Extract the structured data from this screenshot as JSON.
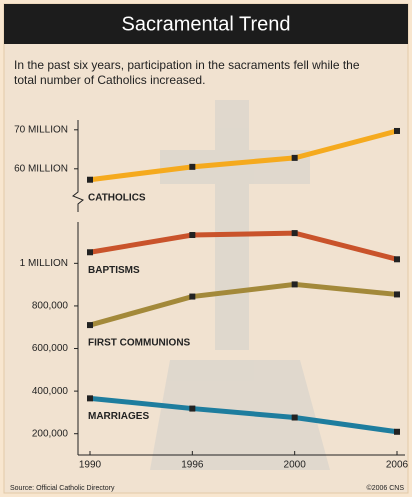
{
  "chart_data": [
    {
      "type": "line",
      "title": "Sacramental Trend",
      "subtitle": "In the past six years, participation in the sacraments fell while the total number of Catholics increased.",
      "series": [
        {
          "name": "CATHOLICS",
          "color": "#f5aa1e",
          "values": [
            57.2,
            60.5,
            62.8,
            69.7
          ]
        }
      ],
      "ylim": [
        52,
        72
      ],
      "yticks": [
        {
          "value": 60,
          "label": "60 MILLION"
        },
        {
          "value": 70,
          "label": "70 MILLION"
        }
      ]
    },
    {
      "type": "line",
      "categories": [
        "1990",
        "1996",
        "2000",
        "2006"
      ],
      "series": [
        {
          "name": "BAPTISMS",
          "color": "#c9532b",
          "values": [
            1052000,
            1133000,
            1142000,
            1019000
          ]
        },
        {
          "name": "FIRST COMMUNIONS",
          "color": "#a3893a",
          "values": [
            710000,
            844000,
            901000,
            854000
          ]
        },
        {
          "name": "MARRIAGES",
          "color": "#1e7d9e",
          "values": [
            366000,
            318000,
            276000,
            209000
          ]
        }
      ],
      "ylim": [
        100000,
        1180000
      ],
      "yticks": [
        {
          "value": 200000,
          "label": "200,000"
        },
        {
          "value": 400000,
          "label": "400,000"
        },
        {
          "value": 600000,
          "label": "600,000"
        },
        {
          "value": 800000,
          "label": "800,000"
        },
        {
          "value": 1000000,
          "label": "1 MILLION"
        }
      ],
      "source": "Source: Official Catholic Directory",
      "credit": "©2006 CNS"
    }
  ]
}
